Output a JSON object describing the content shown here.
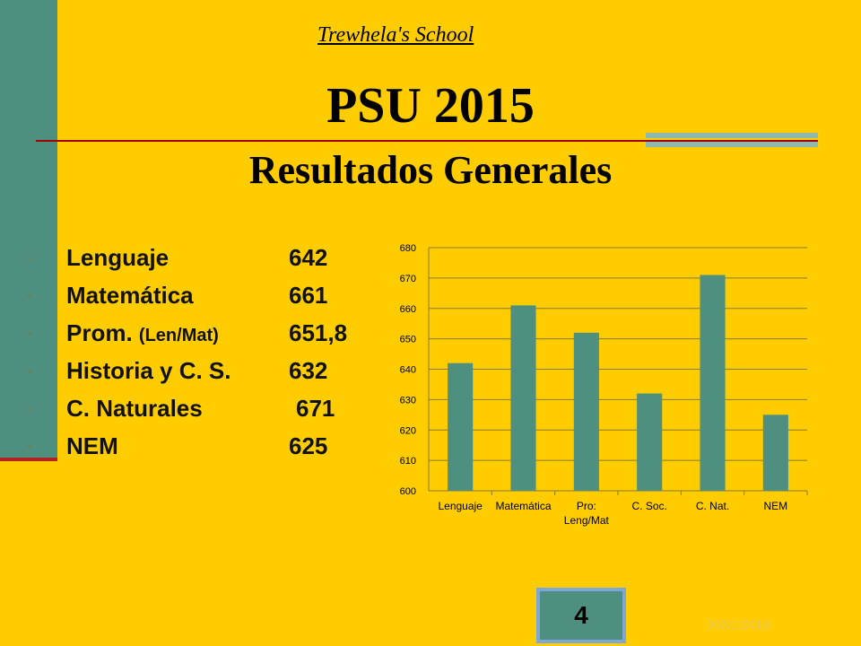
{
  "header": {
    "school": "Trewhela's School",
    "title": "PSU 2015",
    "subtitle": "Resultados Generales"
  },
  "results": [
    {
      "bullet": "-",
      "name": "Lenguaje",
      "small": "",
      "score": "642"
    },
    {
      "bullet": "-",
      "name": "Matemática",
      "small": "",
      "score": "661"
    },
    {
      "bullet": "-",
      "name": "Prom. ",
      "small": "(Len/Mat)",
      "score": "651,8"
    },
    {
      "bullet": "-",
      "name": "Historia y C. S.",
      "small": "",
      "score": "632"
    },
    {
      "bullet": "-",
      "name": "C. Naturales",
      "small": "",
      "score": "671"
    },
    {
      "bullet": "-",
      "name": "NEM",
      "small": "",
      "score": "625"
    }
  ],
  "chart_data": {
    "type": "bar",
    "categories": [
      "Lenguaje",
      "Matemática",
      "Pro: Leng/Mat",
      "C. Soc.",
      "C. Nat.",
      "NEM"
    ],
    "values": [
      642,
      661,
      652,
      632,
      671,
      625
    ],
    "ylim": [
      600,
      680
    ],
    "yticks": [
      600,
      610,
      620,
      630,
      640,
      650,
      660,
      670,
      680
    ],
    "grid": true,
    "bar_color": "#4F8F7F",
    "title": "",
    "xlabel": "",
    "ylabel": ""
  },
  "footer": {
    "page_number": "4",
    "date": "05/01/2016"
  },
  "colors": {
    "background": "#FFCC00",
    "accent": "#4F8F7F",
    "rule": "#A00000"
  }
}
